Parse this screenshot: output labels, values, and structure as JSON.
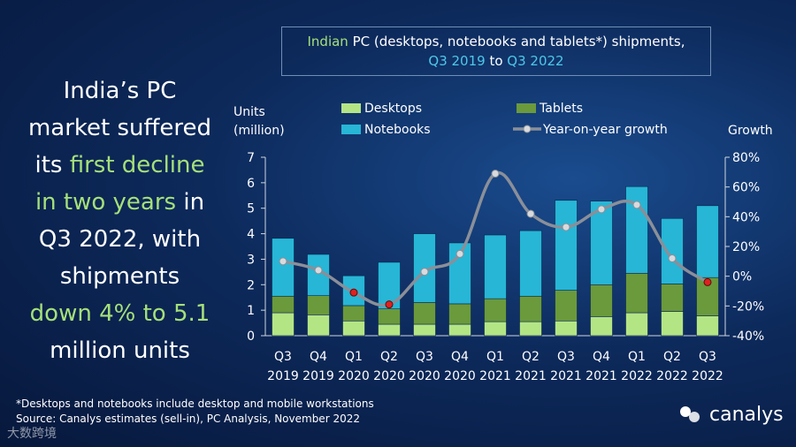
{
  "headline": {
    "line1": "India’s PC",
    "line2": "market suffered",
    "line3_a": "its ",
    "line3_b": "first decline",
    "line4_a": "in two years",
    "line4_b": " in",
    "line5": "Q3 2022, with",
    "line6": "shipments",
    "line7": "down 4% to 5.1",
    "line8": "million units"
  },
  "title": {
    "part1": "Indian",
    "part2": " PC (desktops, notebooks and tablets*) shipments,",
    "part3": "Q3 2019",
    "part4": " to ",
    "part5": "Q3 2022"
  },
  "footnote": {
    "line1": "*Desktops and notebooks include desktop and mobile workstations",
    "line2": "Source: Canalys estimates (sell-in), PC Analysis, November 2022"
  },
  "logo": {
    "text": "canalys"
  },
  "watermark": {
    "text": "大数跨境"
  },
  "colors": {
    "desktops": "#b4e585",
    "tablets": "#6a9a3c",
    "notebooks": "#27b6d6",
    "growth_line": "#8a8f99",
    "growth_point_positive": "#d9dadd",
    "growth_point_negative": "#e02020"
  },
  "chart_data": {
    "type": "bar",
    "stacked": true,
    "categories": [
      "Q3 2019",
      "Q4 2019",
      "Q1 2020",
      "Q2 2020",
      "Q3 2020",
      "Q4 2020",
      "Q1 2021",
      "Q2 2021",
      "Q3 2021",
      "Q4 2021",
      "Q1 2022",
      "Q2 2022",
      "Q3 2022"
    ],
    "category_labels": [
      [
        "Q3",
        "2019"
      ],
      [
        "Q4",
        "2019"
      ],
      [
        "Q1",
        "2020"
      ],
      [
        "Q2",
        "2020"
      ],
      [
        "Q3",
        "2020"
      ],
      [
        "Q4",
        "2020"
      ],
      [
        "Q1",
        "2021"
      ],
      [
        "Q2",
        "2021"
      ],
      [
        "Q3",
        "2021"
      ],
      [
        "Q4",
        "2021"
      ],
      [
        "Q1",
        "2022"
      ],
      [
        "Q2",
        "2022"
      ],
      [
        "Q3",
        "2022"
      ]
    ],
    "series": [
      {
        "name": "Desktops",
        "values": [
          0.9,
          0.82,
          0.58,
          0.45,
          0.45,
          0.45,
          0.55,
          0.55,
          0.58,
          0.75,
          0.9,
          0.95,
          0.78
        ]
      },
      {
        "name": "Tablets",
        "values": [
          0.65,
          0.75,
          0.6,
          0.6,
          0.85,
          0.8,
          0.9,
          1.0,
          1.2,
          1.25,
          1.55,
          1.08,
          1.5
        ]
      },
      {
        "name": "Notebooks",
        "values": [
          2.27,
          1.62,
          1.17,
          1.83,
          2.7,
          2.39,
          2.5,
          2.57,
          3.53,
          3.28,
          3.4,
          2.57,
          2.82
        ]
      }
    ],
    "growth": {
      "name": "Year-on-year growth",
      "values": [
        10,
        4,
        -11,
        -19,
        3,
        15,
        69,
        42,
        33,
        45,
        48,
        12,
        -4
      ]
    },
    "ylabel_left_line1": "Units",
    "ylabel_left_line2": "(million)",
    "ylabel_right": "Growth",
    "ylim_left": [
      0,
      7
    ],
    "yticks_left": [
      "0",
      "1",
      "2",
      "3",
      "4",
      "5",
      "6",
      "7"
    ],
    "ylim_right": [
      -40,
      80
    ],
    "yticks_right": [
      "-40%",
      "-20%",
      "0%",
      "20%",
      "40%",
      "60%",
      "80%"
    ],
    "legend": {
      "placement": "top",
      "items": [
        "Desktops",
        "Tablets",
        "Notebooks",
        "Year-on-year growth"
      ]
    }
  }
}
